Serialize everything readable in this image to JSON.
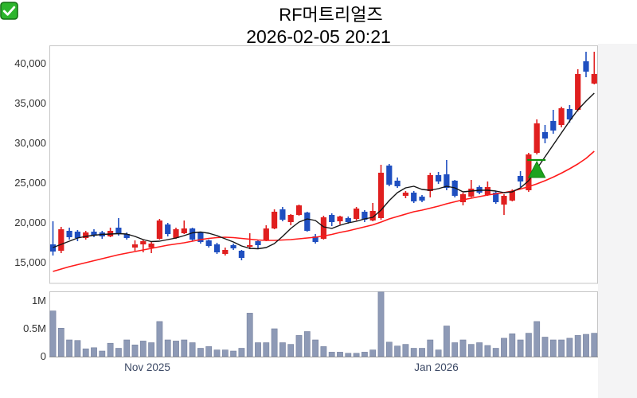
{
  "title": {
    "icon": "green-checkbox-checked",
    "stock_name": "RF머트리얼즈",
    "timestamp": "2026-02-05 20:21"
  },
  "price_axis": {
    "labels": [
      "40,000",
      "35,000",
      "30,000",
      "25,000",
      "20,000",
      "15,000"
    ]
  },
  "volume_axis": {
    "labels": [
      "1M",
      "0.5M",
      "0"
    ]
  },
  "time_axis": {
    "labels": [
      "Nov 2025",
      "Jan 2026"
    ]
  },
  "chart_data": {
    "type": "candlestick",
    "panels": [
      "price",
      "volume"
    ],
    "title": "RF머트리얼즈 2026-02-05 20:21",
    "price_ylim": [
      12400,
      42300
    ],
    "price_ticks": [
      15000,
      20000,
      25000,
      30000,
      35000,
      40000
    ],
    "volume_ylim_millions": [
      0,
      1.2
    ],
    "volume_ticks_millions": [
      0,
      0.5,
      1
    ],
    "x_tick_labels": [
      {
        "text": "Nov 2025",
        "at_index": 11.5
      },
      {
        "text": "Jan 2026",
        "at_index": 46.7
      }
    ],
    "candles_format": [
      "open",
      "high",
      "low",
      "close",
      "volume_millions"
    ],
    "candles": [
      [
        17300,
        20200,
        15900,
        16400,
        0.82
      ],
      [
        16500,
        19500,
        16200,
        19200,
        0.51
      ],
      [
        19000,
        19400,
        17900,
        18200,
        0.3
      ],
      [
        18900,
        19100,
        17700,
        18100,
        0.29
      ],
      [
        18100,
        19000,
        17900,
        18800,
        0.14
      ],
      [
        18900,
        19200,
        18200,
        18400,
        0.16
      ],
      [
        18800,
        19000,
        18000,
        18300,
        0.1
      ],
      [
        18300,
        19400,
        18200,
        19000,
        0.24
      ],
      [
        19400,
        20600,
        18400,
        18600,
        0.15
      ],
      [
        18600,
        18800,
        17900,
        18100,
        0.3
      ],
      [
        16900,
        17800,
        16500,
        17300,
        0.21
      ],
      [
        17300,
        17900,
        16300,
        17700,
        0.28
      ],
      [
        16900,
        17600,
        16200,
        17400,
        0.25
      ],
      [
        18000,
        20500,
        17900,
        20300,
        0.63
      ],
      [
        19800,
        20000,
        18300,
        18600,
        0.3
      ],
      [
        18100,
        19400,
        18000,
        19200,
        0.28
      ],
      [
        18700,
        20300,
        18600,
        19300,
        0.3
      ],
      [
        19300,
        19400,
        17700,
        17900,
        0.25
      ],
      [
        18800,
        18900,
        17400,
        17600,
        0.15
      ],
      [
        17800,
        17900,
        16900,
        17100,
        0.18
      ],
      [
        17300,
        17500,
        16100,
        16300,
        0.12
      ],
      [
        16100,
        16900,
        15900,
        16600,
        0.12
      ],
      [
        17200,
        17400,
        16600,
        16800,
        0.1
      ],
      [
        16500,
        16600,
        15300,
        15600,
        0.15
      ],
      [
        17000,
        18700,
        16700,
        17200,
        0.78
      ],
      [
        17700,
        17800,
        16700,
        17200,
        0.25
      ],
      [
        17800,
        19700,
        17700,
        19300,
        0.25
      ],
      [
        19300,
        21700,
        19200,
        21400,
        0.5
      ],
      [
        21700,
        22000,
        20200,
        20400,
        0.25
      ],
      [
        20100,
        21100,
        19700,
        21000,
        0.22
      ],
      [
        21000,
        22300,
        20900,
        22200,
        0.38
      ],
      [
        21300,
        21400,
        18900,
        19000,
        0.45
      ],
      [
        18300,
        18600,
        17400,
        17600,
        0.3
      ],
      [
        18000,
        20900,
        17900,
        20700,
        0.18
      ],
      [
        21000,
        21200,
        19600,
        20100,
        0.08
      ],
      [
        20200,
        20900,
        19800,
        20800,
        0.08
      ],
      [
        20600,
        20800,
        19900,
        20100,
        0.06
      ],
      [
        20500,
        22000,
        20300,
        21800,
        0.06
      ],
      [
        21400,
        21600,
        20100,
        20400,
        0.08
      ],
      [
        20300,
        22500,
        20200,
        21500,
        0.12
      ],
      [
        20600,
        27300,
        20400,
        26300,
        1.16
      ],
      [
        27200,
        27400,
        24600,
        24800,
        0.26
      ],
      [
        25300,
        25700,
        24400,
        24600,
        0.19
      ],
      [
        23400,
        24000,
        23100,
        23800,
        0.22
      ],
      [
        23800,
        24000,
        22500,
        22700,
        0.15
      ],
      [
        23300,
        23500,
        22600,
        22800,
        0.15
      ],
      [
        24000,
        26300,
        23200,
        26000,
        0.3
      ],
      [
        26000,
        26400,
        24900,
        25200,
        0.12
      ],
      [
        26100,
        27900,
        24100,
        24400,
        0.55
      ],
      [
        25300,
        25400,
        23200,
        23400,
        0.25
      ],
      [
        22600,
        23800,
        22200,
        23600,
        0.3
      ],
      [
        23300,
        25400,
        23200,
        24300,
        0.22
      ],
      [
        24500,
        24700,
        23600,
        23800,
        0.25
      ],
      [
        23500,
        25200,
        23400,
        24500,
        0.2
      ],
      [
        23800,
        24000,
        22400,
        22600,
        0.15
      ],
      [
        22300,
        23600,
        21000,
        23400,
        0.33
      ],
      [
        22800,
        24200,
        22700,
        24000,
        0.41
      ],
      [
        25900,
        26500,
        24500,
        25200,
        0.3
      ],
      [
        24100,
        28800,
        23900,
        28600,
        0.42
      ],
      [
        28800,
        33000,
        28600,
        32500,
        0.63
      ],
      [
        31400,
        32300,
        30000,
        30600,
        0.35
      ],
      [
        32800,
        34200,
        31200,
        31600,
        0.3
      ],
      [
        32300,
        34600,
        32000,
        34400,
        0.3
      ],
      [
        34300,
        34800,
        32600,
        33000,
        0.33
      ],
      [
        34200,
        39300,
        34000,
        38700,
        0.38
      ],
      [
        40300,
        41500,
        38300,
        39000,
        0.4
      ],
      [
        37500,
        41500,
        37400,
        38700,
        0.42
      ]
    ],
    "ma_short_values": [
      16900,
      17300,
      17700,
      18100,
      18300,
      18450,
      18550,
      18600,
      18650,
      18600,
      18300,
      17900,
      17650,
      17700,
      17900,
      18100,
      18400,
      18750,
      18850,
      18700,
      18400,
      18000,
      17600,
      17100,
      16800,
      16750,
      16900,
      17400,
      18300,
      19300,
      20100,
      20500,
      20300,
      19500,
      19300,
      19700,
      20000,
      20200,
      20500,
      20700,
      21600,
      22800,
      23800,
      24400,
      24600,
      24200,
      24100,
      24300,
      24600,
      24400,
      23900,
      24000,
      24100,
      24100,
      24000,
      23800,
      23900,
      24400,
      25300,
      26800,
      28300,
      29800,
      31300,
      32800,
      34200,
      35300,
      36300
    ],
    "ma_long_values": [
      13900,
      14200,
      14500,
      14750,
      15000,
      15250,
      15500,
      15750,
      16000,
      16200,
      16400,
      16600,
      16800,
      17000,
      17200,
      17350,
      17500,
      17700,
      17900,
      18050,
      18150,
      18200,
      18150,
      18050,
      17950,
      17850,
      17800,
      17800,
      17850,
      17900,
      18000,
      18100,
      18200,
      18350,
      18550,
      18800,
      19000,
      19250,
      19500,
      19750,
      20100,
      20500,
      20800,
      21100,
      21400,
      21600,
      21850,
      22100,
      22400,
      22650,
      22900,
      23100,
      23300,
      23500,
      23650,
      23800,
      24000,
      24250,
      24550,
      24900,
      25300,
      25750,
      26250,
      26800,
      27400,
      28100,
      29000
    ],
    "marker": {
      "type": "buy-triangle-up",
      "at_index": 59,
      "apex_value": 27700,
      "base_value": 25700,
      "line_value": 27900
    },
    "colors": {
      "up": "#e01f1f",
      "down": "#1f4fc0",
      "volume": "#8e9ab6",
      "volume_edge": "#76819e",
      "ma_short": "#141414",
      "ma_long": "#ff1a1a",
      "marker": "#1ea31e",
      "panel_border": "#c6c6c6"
    }
  }
}
